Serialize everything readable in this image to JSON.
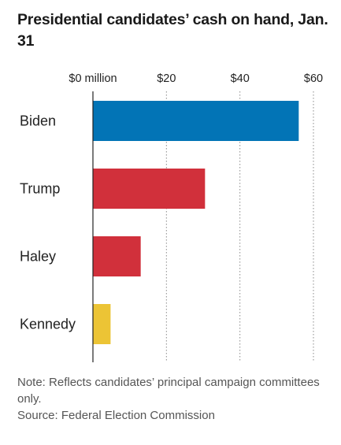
{
  "title": "Presidential candidates’ cash on hand, Jan. 31",
  "note": "Note: Reflects candidates’ principal campaign committees only.",
  "source": "Source: Federal Election Commission",
  "chart_data": {
    "type": "bar",
    "orientation": "horizontal",
    "title": "Presidential candidates’ cash on hand, Jan. 31",
    "xlabel": "",
    "ylabel": "",
    "xlim": [
      0,
      60
    ],
    "ticks": [
      {
        "value": 0,
        "label": "$0 million"
      },
      {
        "value": 20,
        "label": "$20"
      },
      {
        "value": 40,
        "label": "$40"
      },
      {
        "value": 60,
        "label": "$60"
      }
    ],
    "grid": true,
    "categories": [
      "Biden",
      "Trump",
      "Haley",
      "Kennedy"
    ],
    "values": [
      56,
      30.5,
      13,
      4.8
    ],
    "colors": [
      "#0274b6",
      "#d1303b",
      "#d1303b",
      "#ecc435"
    ]
  }
}
